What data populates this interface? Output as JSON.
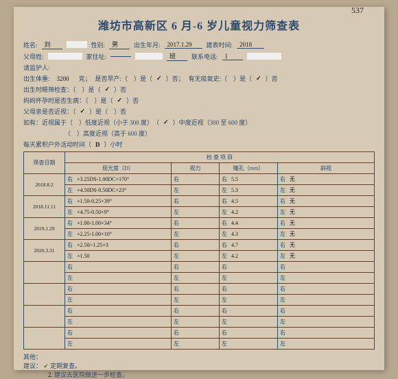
{
  "pagenum": "537",
  "title": "潍坊市高新区 6 月-6 岁儿童视力筛查表",
  "hdr": {
    "name_lbl": "姓名:",
    "name_val": "刘",
    "sex_lbl": "性别:",
    "sex_val": "男",
    "dob_lbl": "出生年月:",
    "dob_val": "2017.1.29",
    "formtime_lbl": "建表时间:",
    "formtime_val": "2018",
    "parent_lbl": "父母姓:",
    "parent_val": "",
    "addr_lbl": "家住址:",
    "addr_val": "",
    "class_lbl": "班",
    "class_val": "",
    "phone_lbl": "联系电话:",
    "phone_val": "1"
  },
  "q": {
    "guardian_lbl": "请监护人:",
    "bw_lbl": "出生体重:",
    "bw_val": "3200",
    "bw_unit": "克；",
    "prem_lbl": "是否早产:（　）是（",
    "prem_chk": "✓",
    "prem_end": "）否；",
    "o2_lbl": "有无吸氧史:（　）是（",
    "o2_chk": "✓",
    "o2_end": "）否",
    "scr_lbl": "出生时眼筛检查：（　）是（",
    "scr_chk": "✓",
    "scr_end": "）否",
    "mom_lbl": "妈妈怀孕时是否生病：（　）是（",
    "mom_chk": "✓",
    "mom_end": "）否",
    "myo_lbl": "父母亲是否近视：（",
    "myo_chk": "✓",
    "myo_end": "）是（　）否",
    "deg_lbl": "如有：近视属于（　）低度近视（小于 300 度）　（",
    "deg_chk": "✓",
    "deg_end": "）中度近视（300 至 600 度）",
    "deg2": "（　）高度近视（高于 600 度）",
    "out_lbl": "每天累积户外活动时间（",
    "out_val": "D",
    "out_end": "）小时"
  },
  "tbl": {
    "c_date": "筛查日期",
    "c_group": "检 查 项 目",
    "c_diop": "屈光度（D）",
    "c_va": "视力",
    "c_pup": "瞳孔（mm）",
    "c_strab": "斜视",
    "r": "右",
    "l": "左",
    "rows": [
      {
        "date": "2018.8.2",
        "diop_r": "+3.25DS-1.00DC×170°",
        "diop_l": "+4.50DS-0.50DC×23°",
        "pup_r": "5.5",
        "pup_l": "5.3",
        "strab_r": "无",
        "strab_l": "无"
      },
      {
        "date": "2018.11.11",
        "diop_r": "+1.50-0.25×39°",
        "diop_l": "+4.75-0.50×9°",
        "pup_r": "4.5",
        "pup_l": "4.2",
        "strab_r": "无",
        "strab_l": "无"
      },
      {
        "date": "2019.1.29",
        "diop_r": "+1.00-1.00×34°",
        "diop_l": "+2.25-1.00×10°",
        "pup_r": "4.4",
        "pup_l": "4.3",
        "strab_r": "无",
        "strab_l": "无"
      },
      {
        "date": "2020.3.31",
        "diop_r": "+2.50/-1.25×3",
        "diop_l": "+1.50",
        "pup_r": "4.7",
        "pup_l": "4.2",
        "strab_r": "无",
        "strab_l": "无"
      }
    ]
  },
  "ftr": {
    "other_lbl": "其他：",
    "sug_lbl": "建议：",
    "sug1_mark": "✓",
    "sug1": "定期复查。",
    "sug2_mark": "2.",
    "sug2": "建议去医院做进一步检查。"
  }
}
